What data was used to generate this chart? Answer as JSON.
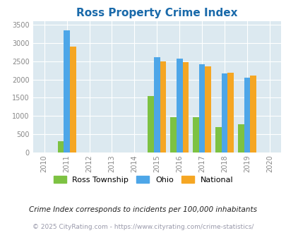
{
  "title": "Ross Property Crime Index",
  "years": [
    2011,
    2015,
    2016,
    2017,
    2018,
    2019
  ],
  "ross_township": [
    310,
    1550,
    960,
    960,
    690,
    770
  ],
  "ohio": [
    3340,
    2600,
    2580,
    2420,
    2170,
    2040
  ],
  "national": [
    2900,
    2490,
    2470,
    2360,
    2190,
    2100
  ],
  "bar_width": 0.27,
  "colors": {
    "ross": "#7dc242",
    "ohio": "#4da6e8",
    "national": "#f5a623"
  },
  "xlim": [
    2009.5,
    2020.5
  ],
  "ylim": [
    0,
    3600
  ],
  "yticks": [
    0,
    500,
    1000,
    1500,
    2000,
    2500,
    3000,
    3500
  ],
  "xticks": [
    2010,
    2011,
    2012,
    2013,
    2014,
    2015,
    2016,
    2017,
    2018,
    2019,
    2020
  ],
  "bg_color": "#dce9f0",
  "fig_bg": "#ffffff",
  "title_color": "#1a6aaa",
  "subtitle": "Crime Index corresponds to incidents per 100,000 inhabitants",
  "footer": "© 2025 CityRating.com - https://www.cityrating.com/crime-statistics/",
  "legend_labels": [
    "Ross Township",
    "Ohio",
    "National"
  ],
  "subtitle_color": "#222222",
  "footer_color": "#9999aa",
  "grid_color": "#ffffff"
}
